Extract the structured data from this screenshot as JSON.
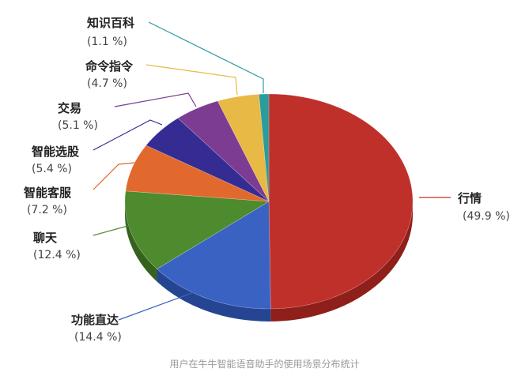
{
  "chart_data": {
    "type": "pie",
    "title": "",
    "slices": [
      {
        "label": "行情",
        "pct_label": "(49.9 %)",
        "value": 49.9,
        "color": "#C0302B",
        "side": "#8E1F1B"
      },
      {
        "label": "功能直达",
        "pct_label": "(14.4 %)",
        "value": 14.4,
        "color": "#3A62C3",
        "side": "#254592"
      },
      {
        "label": "聊天",
        "pct_label": "(12.4 %)",
        "value": 12.4,
        "color": "#4E8A2E",
        "side": "#35631D"
      },
      {
        "label": "智能客服",
        "pct_label": "(7.2 %)",
        "value": 7.2,
        "color": "#E2692D",
        "side": "#A84A1E"
      },
      {
        "label": "智能选股",
        "pct_label": "(5.4 %)",
        "value": 5.4,
        "color": "#352C93",
        "side": "#221C66"
      },
      {
        "label": "交易",
        "pct_label": "(5.1 %)",
        "value": 5.1,
        "color": "#7B3C91",
        "side": "#562969"
      },
      {
        "label": "命令指令",
        "pct_label": "(4.7 %)",
        "value": 4.7,
        "color": "#E8B944",
        "side": "#B08A2C"
      },
      {
        "label": "知识百科",
        "pct_label": "(1.1 %)",
        "value": 1.1,
        "color": "#2B9C9C",
        "side": "#1D6F6F"
      }
    ],
    "legend": "none",
    "caption": "用户在牛牛智能语音助手的使用场景分布统计"
  }
}
